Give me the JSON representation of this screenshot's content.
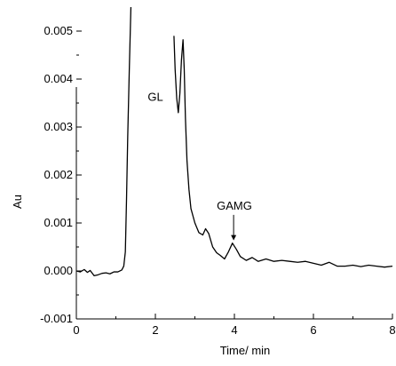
{
  "chart_data": {
    "type": "line",
    "title": "",
    "xlabel": "Time/ min",
    "ylabel": "Au",
    "xlim": [
      0,
      8
    ],
    "ylim": [
      -0.001,
      0.0055
    ],
    "x_ticks": [
      0,
      2,
      4,
      6,
      8
    ],
    "x_tick_labels": [
      "0",
      "2",
      "4",
      "6",
      "8"
    ],
    "y_ticks": [
      -0.001,
      0,
      0.001,
      0.002,
      0.003,
      0.004,
      0.005
    ],
    "y_tick_labels": [
      "-0.001",
      "0.000",
      "0.001",
      "0.002",
      "0.003",
      "0.004",
      "0.005"
    ],
    "grid": false,
    "legend": "none",
    "series": [
      {
        "color": "#000000",
        "points": [
          [
            0.0,
            0.0
          ],
          [
            0.1,
            -2e-05
          ],
          [
            0.2,
            3e-05
          ],
          [
            0.28,
            -3e-05
          ],
          [
            0.35,
            1e-05
          ],
          [
            0.45,
            -0.0001
          ],
          [
            0.55,
            -8e-05
          ],
          [
            0.65,
            -5e-05
          ],
          [
            0.75,
            -4e-05
          ],
          [
            0.85,
            -6e-05
          ],
          [
            0.95,
            -2e-05
          ],
          [
            1.05,
            -2e-05
          ],
          [
            1.15,
            2e-05
          ],
          [
            1.2,
            0.0001
          ],
          [
            1.24,
            0.0004
          ],
          [
            1.27,
            0.0015
          ],
          [
            1.3,
            0.0028
          ],
          [
            1.34,
            0.0042
          ],
          [
            1.39,
            0.0058
          ],
          [
            1.42,
            0.0064
          ]
        ]
      },
      {
        "color": "#000000",
        "points": [
          [
            2.47,
            0.0049
          ],
          [
            2.5,
            0.0042
          ],
          [
            2.54,
            0.0036
          ],
          [
            2.58,
            0.0033
          ],
          [
            2.62,
            0.0037
          ],
          [
            2.66,
            0.0044
          ],
          [
            2.7,
            0.00482
          ],
          [
            2.73,
            0.0042
          ],
          [
            2.76,
            0.0032
          ],
          [
            2.8,
            0.0023
          ],
          [
            2.85,
            0.0017
          ],
          [
            2.9,
            0.0013
          ],
          [
            3.0,
            0.001
          ],
          [
            3.1,
            0.0008
          ],
          [
            3.2,
            0.00075
          ],
          [
            3.27,
            0.00088
          ],
          [
            3.35,
            0.00078
          ],
          [
            3.45,
            0.0005
          ],
          [
            3.55,
            0.00038
          ],
          [
            3.65,
            0.00032
          ],
          [
            3.75,
            0.00025
          ],
          [
            3.85,
            0.0004
          ],
          [
            3.95,
            0.00058
          ],
          [
            4.05,
            0.00045
          ],
          [
            4.15,
            0.0003
          ],
          [
            4.3,
            0.00022
          ],
          [
            4.45,
            0.00028
          ],
          [
            4.6,
            0.0002
          ],
          [
            4.8,
            0.00025
          ],
          [
            5.0,
            0.0002
          ],
          [
            5.2,
            0.00022
          ],
          [
            5.4,
            0.0002
          ],
          [
            5.6,
            0.00018
          ],
          [
            5.8,
            0.0002
          ],
          [
            6.0,
            0.00016
          ],
          [
            6.2,
            0.00012
          ],
          [
            6.4,
            0.00018
          ],
          [
            6.6,
            0.0001
          ],
          [
            6.8,
            0.0001
          ],
          [
            7.0,
            0.00012
          ],
          [
            7.2,
            9e-05
          ],
          [
            7.4,
            0.00012
          ],
          [
            7.6,
            0.0001
          ],
          [
            7.8,
            8e-05
          ],
          [
            8.0,
            0.0001
          ]
        ]
      }
    ],
    "annotations": [
      {
        "text": "GL",
        "x": 2.0,
        "y": 0.00355
      },
      {
        "text": "GAMG",
        "x": 4.0,
        "y": 0.00128,
        "arrow_to": [
          3.98,
          0.0006
        ]
      }
    ]
  }
}
